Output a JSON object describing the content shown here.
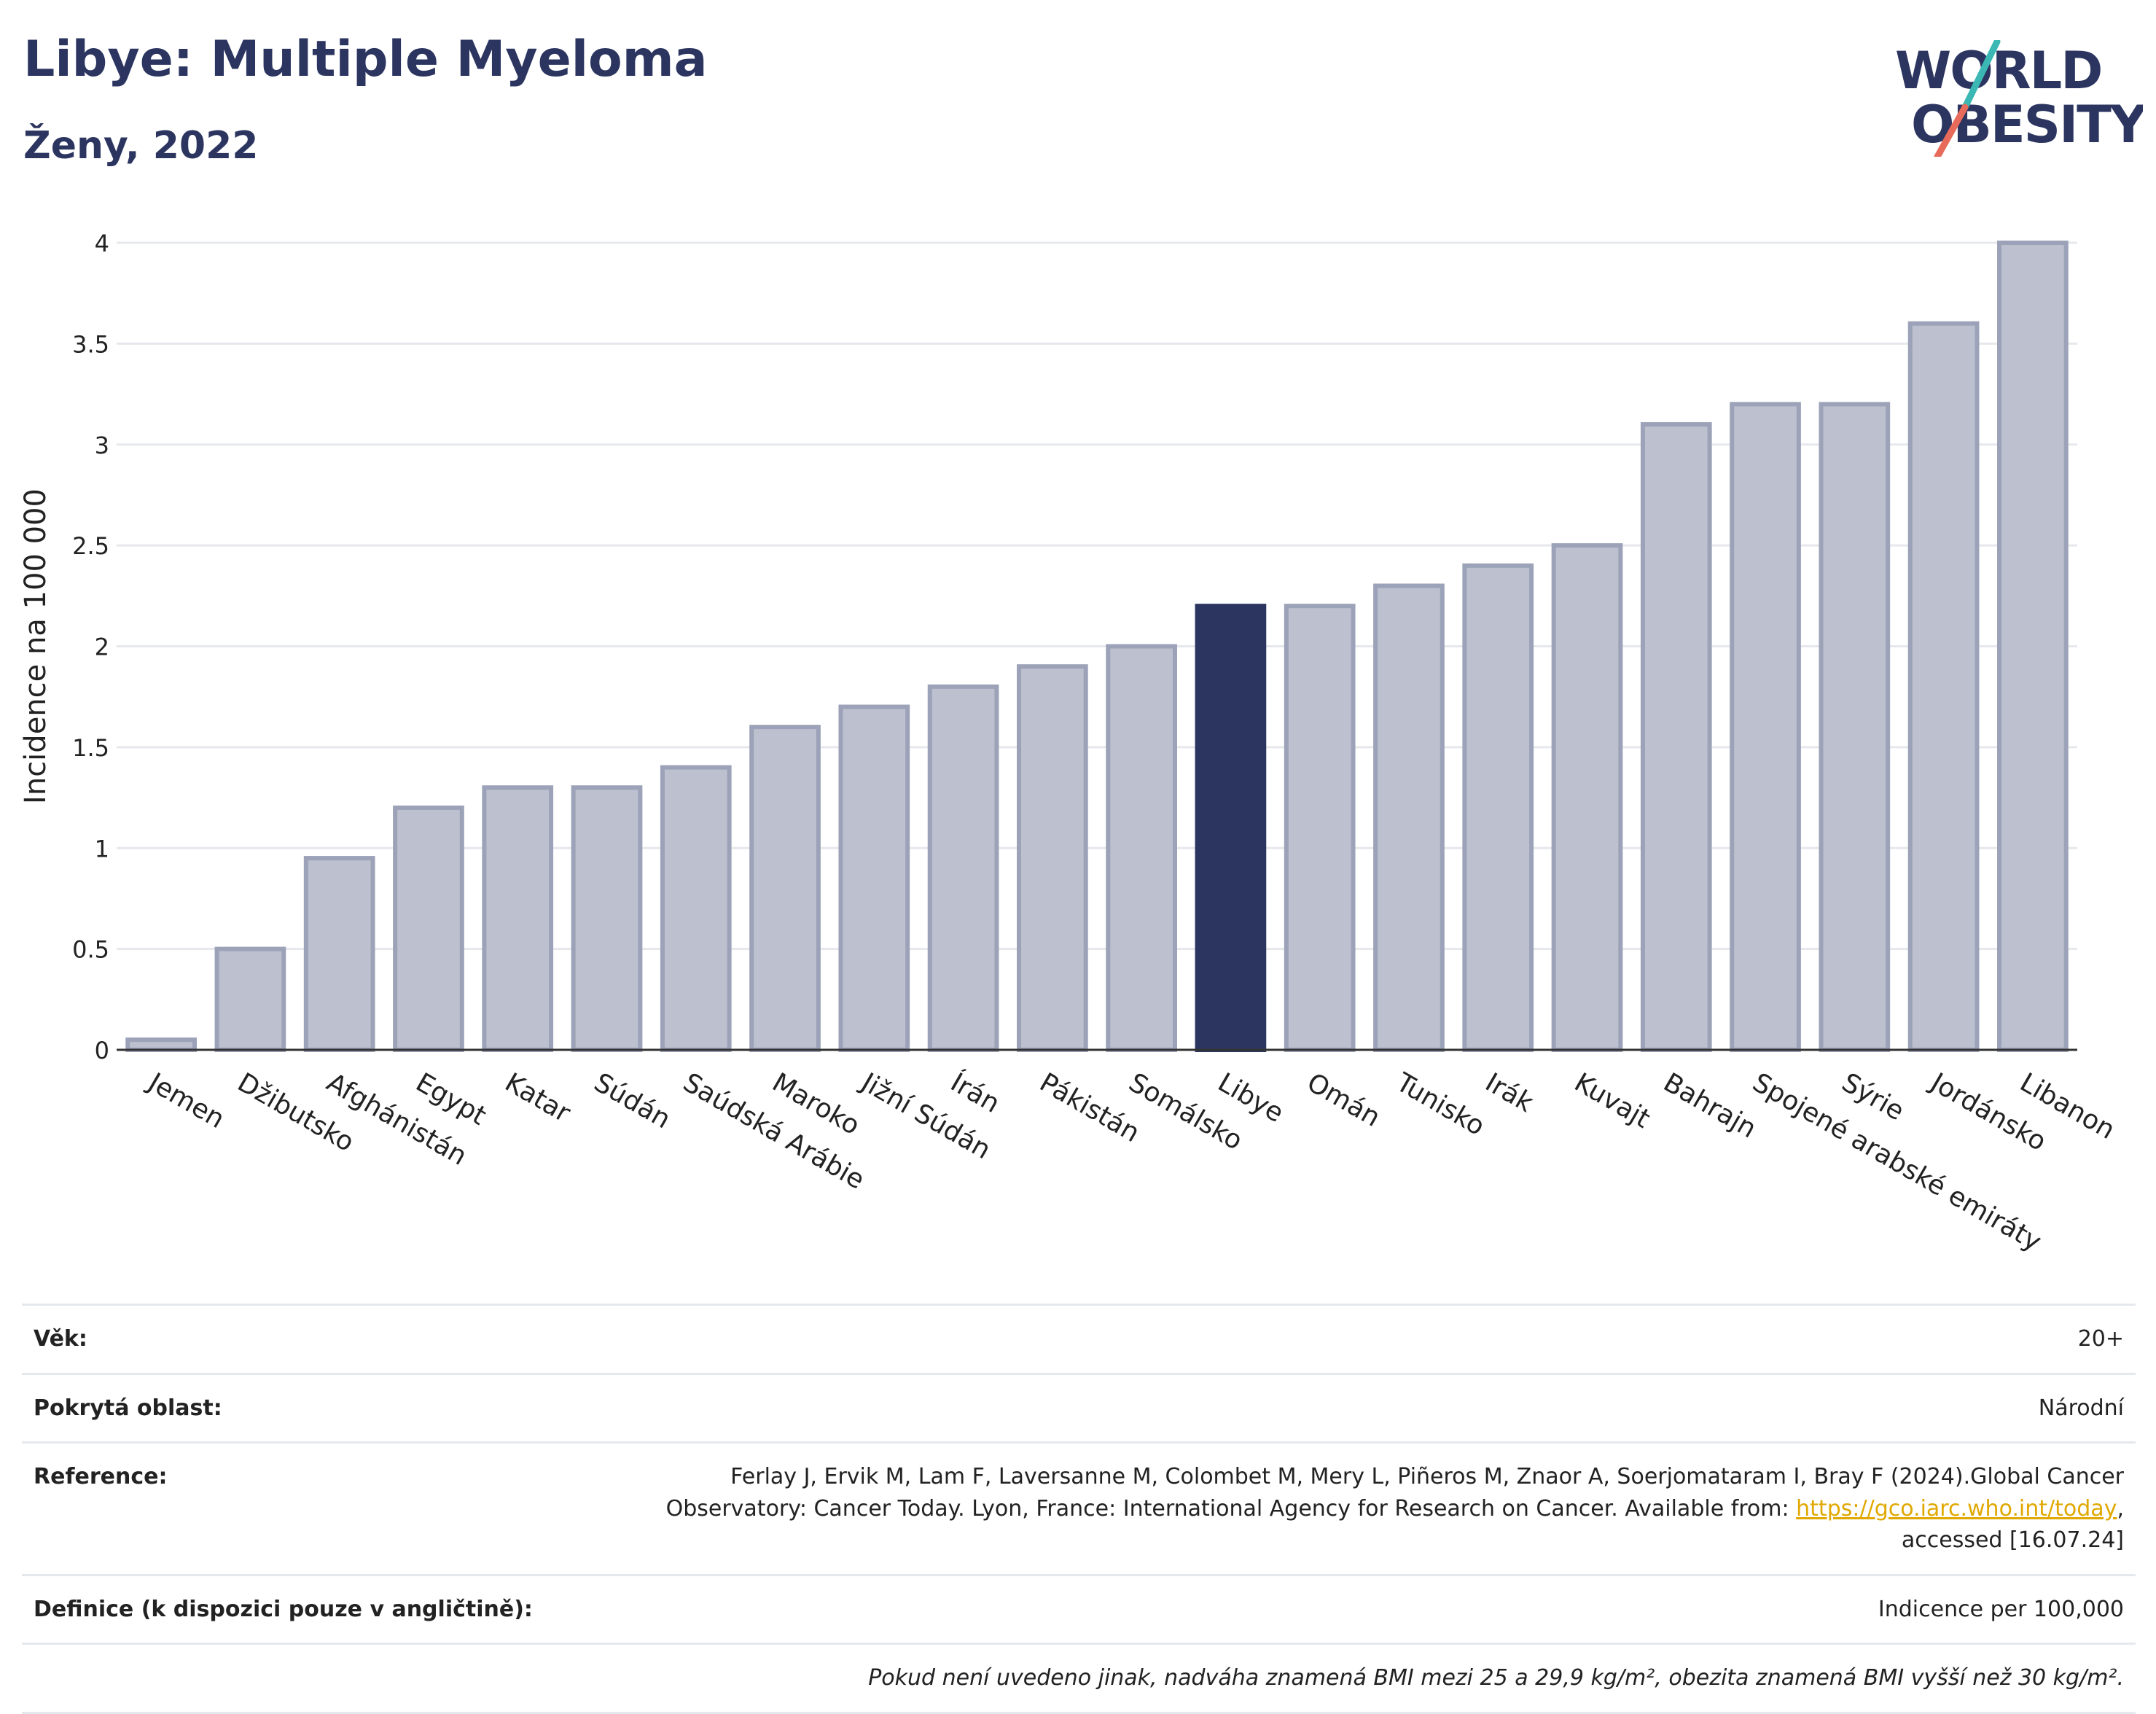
{
  "header": {
    "title": "Libye: Multiple Myeloma",
    "subtitle": "Ženy, 2022"
  },
  "logo": {
    "line1": "WORLD",
    "line2": "OBESITY",
    "text": "WORLD OBESITY"
  },
  "colors": {
    "bar_fill": "#bcc0cf",
    "bar_stroke": "#9ca2b8",
    "highlight": "#2b3560",
    "grid": "#e6e8ee",
    "link": "#e0a800",
    "logo_teal": "#3bb8b3",
    "logo_coral": "#e86a5a"
  },
  "chart_data": {
    "type": "bar",
    "title": "Libye: Multiple Myeloma",
    "subtitle": "Ženy, 2022",
    "ylabel": "Incidence na 100 000",
    "xlabel": "",
    "ylim": [
      0,
      4
    ],
    "yticks": [
      0,
      0.5,
      1,
      1.5,
      2,
      2.5,
      3,
      3.5,
      4
    ],
    "ytick_labels": [
      "0",
      "0.5",
      "1",
      "1.5",
      "2",
      "2.5",
      "3",
      "3.5",
      "4"
    ],
    "grid": true,
    "highlight": "Libye",
    "categories": [
      "Jemen",
      "Džibutsko",
      "Afghánistán",
      "Egypt",
      "Katar",
      "Súdán",
      "Saúdská Arábie",
      "Maroko",
      "Jižní Súdán",
      "Írán",
      "Pákistán",
      "Somálsko",
      "Libye",
      "Omán",
      "Tunisko",
      "Irák",
      "Kuvajt",
      "Bahrajn",
      "Spojené arabské emiráty",
      "Sýrie",
      "Jordánsko",
      "Libanon"
    ],
    "values": [
      0.05,
      0.5,
      0.95,
      1.2,
      1.3,
      1.3,
      1.4,
      1.6,
      1.7,
      1.8,
      1.9,
      2.0,
      2.2,
      2.2,
      2.3,
      2.4,
      2.5,
      3.1,
      3.2,
      3.2,
      3.6,
      4.0
    ]
  },
  "info": {
    "age_label": "Věk:",
    "age_value": "20+",
    "area_label": "Pokrytá oblast:",
    "area_value": "Národní",
    "ref_label": "Reference:",
    "ref_text_1": "Ferlay J, Ervik M, Lam F, Laversanne M, Colombet M, Mery L, Piñeros M, Znaor A, Soerjomataram I, Bray F (2024).Global Cancer Observatory: Cancer Today. Lyon, France: International Agency for Research on Cancer. Available from: ",
    "ref_link": "https://gco.iarc.who.int/today",
    "ref_text_2": ", accessed [16.07.24]",
    "def_label": "Definice (k dispozici pouze v angličtině):",
    "def_value": "Indicence per 100,000",
    "note": "Pokud není uvedeno jinak, nadváha znamená BMI mezi 25 a 29,9 kg/m², obezita znamená BMI vyšší než 30 kg/m²."
  }
}
